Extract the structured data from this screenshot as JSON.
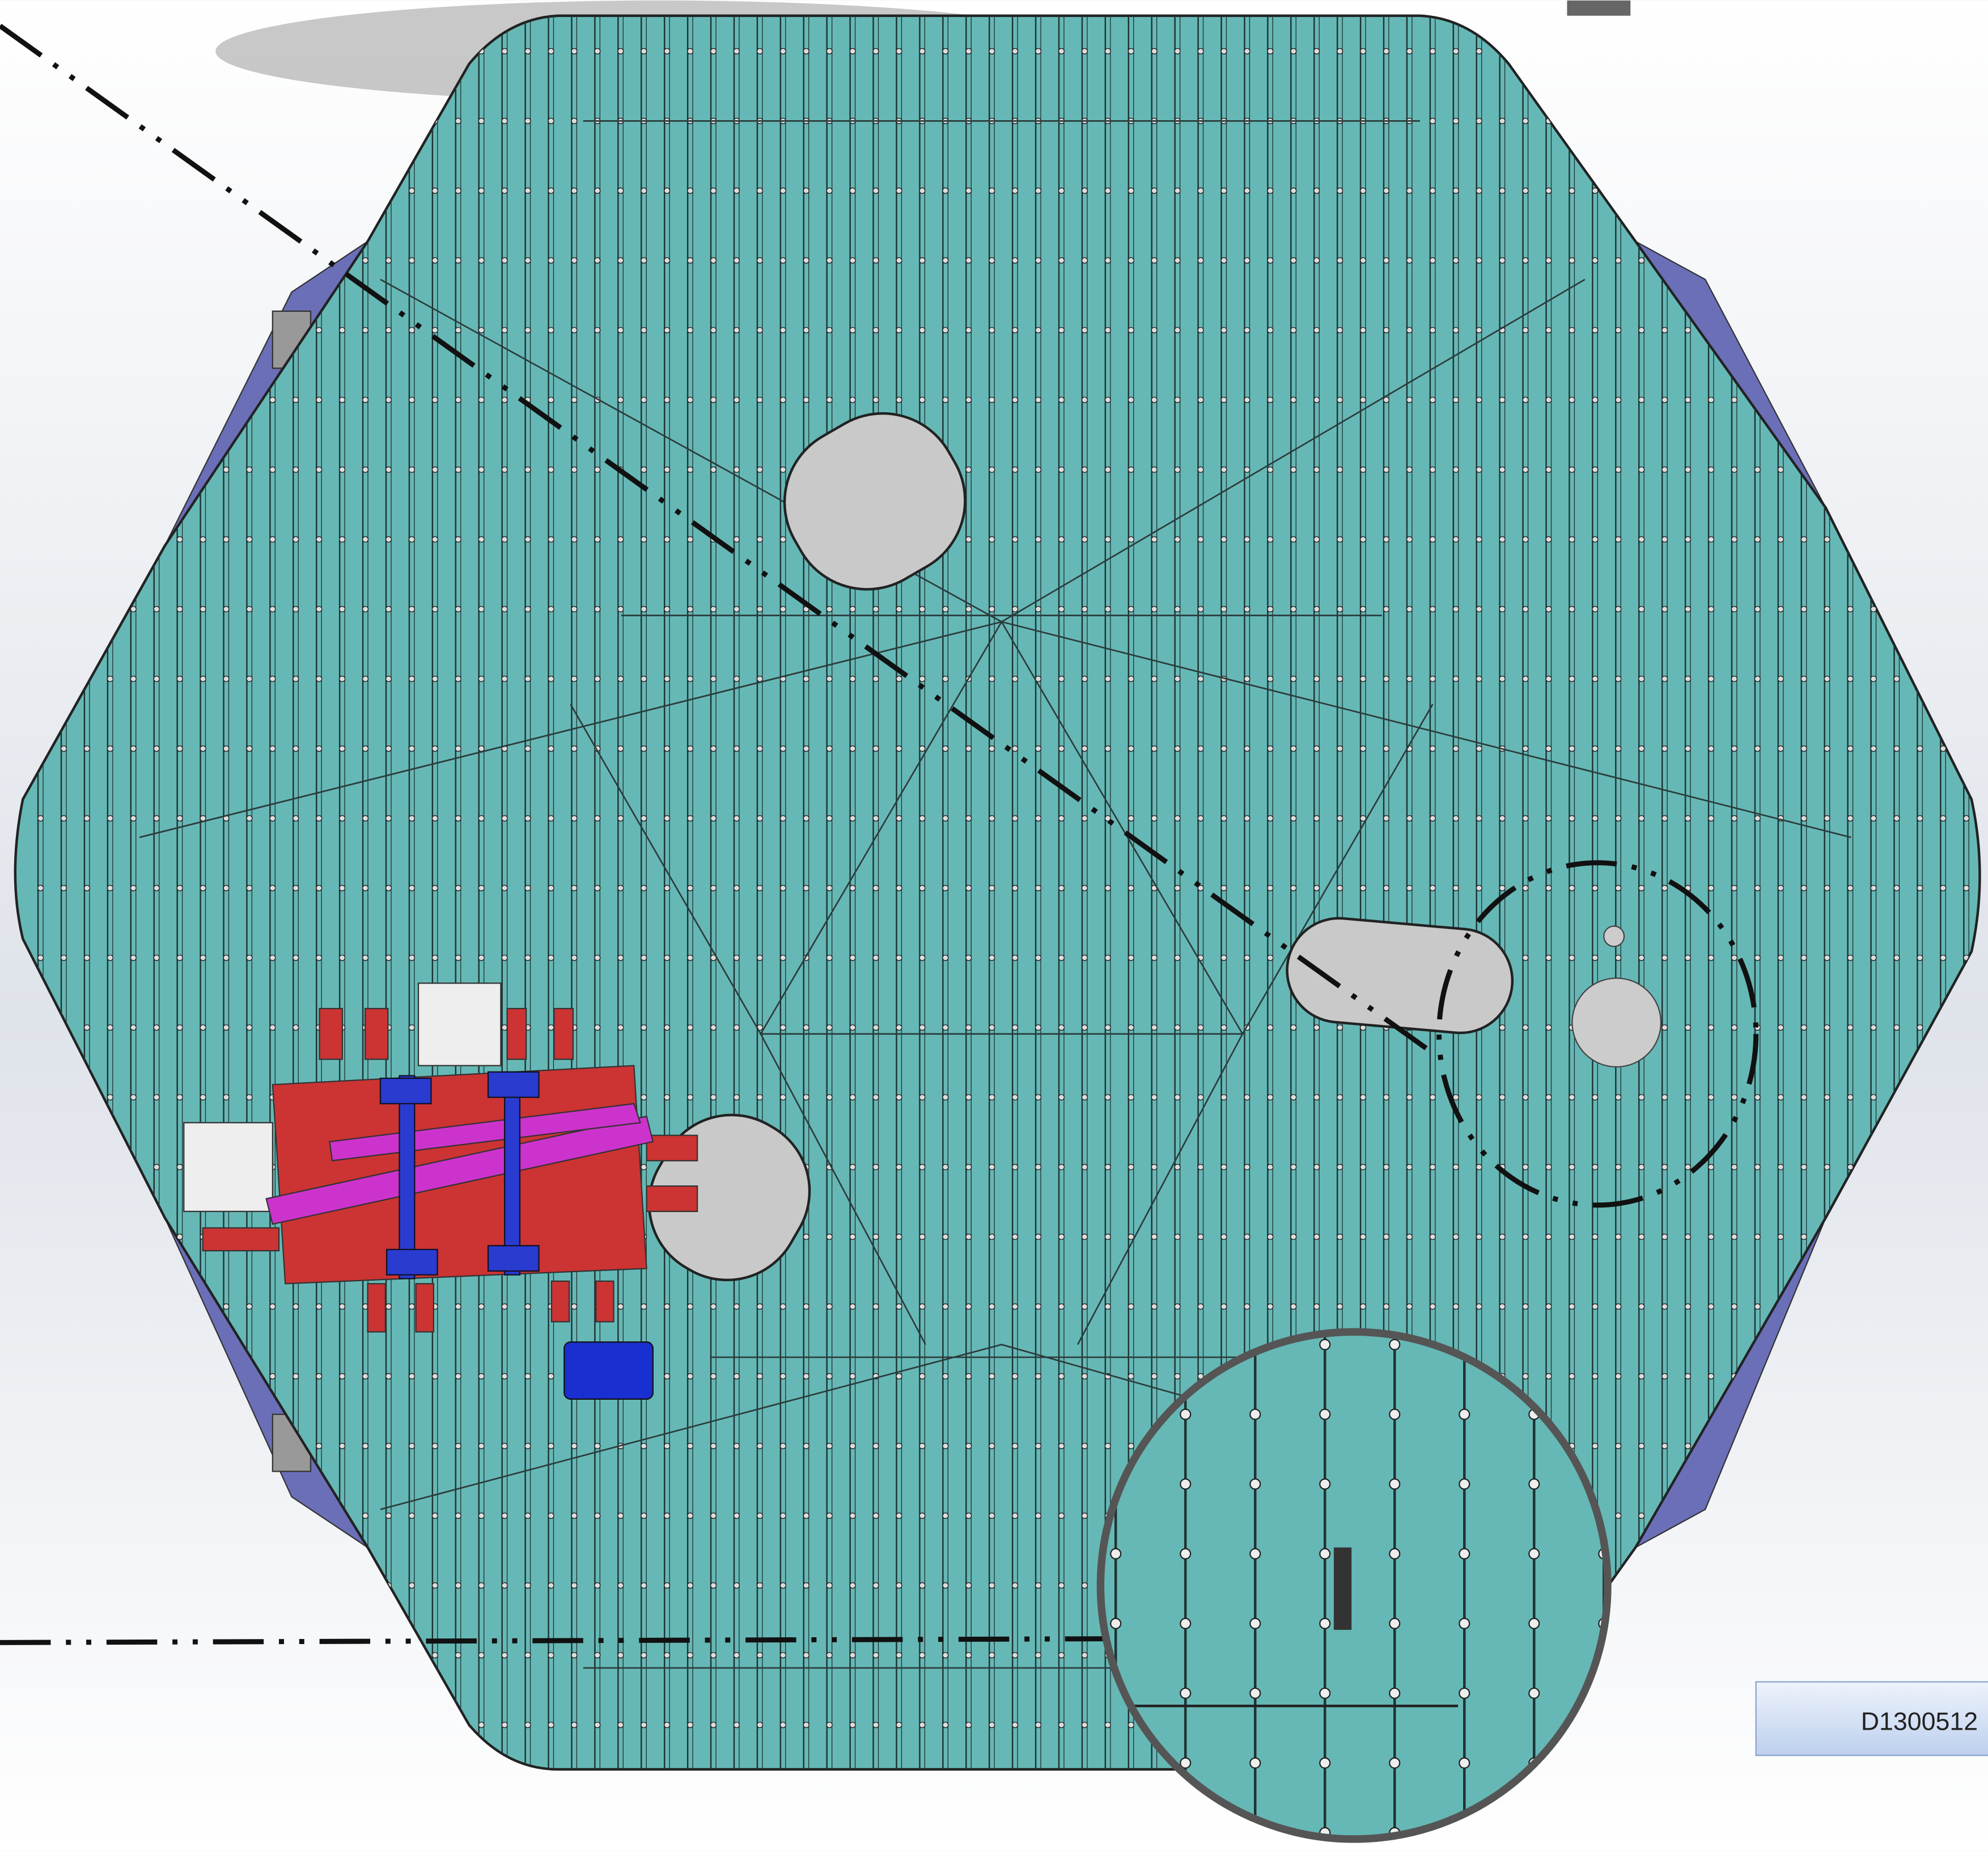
{
  "drawing_label": "D1300512"
}
